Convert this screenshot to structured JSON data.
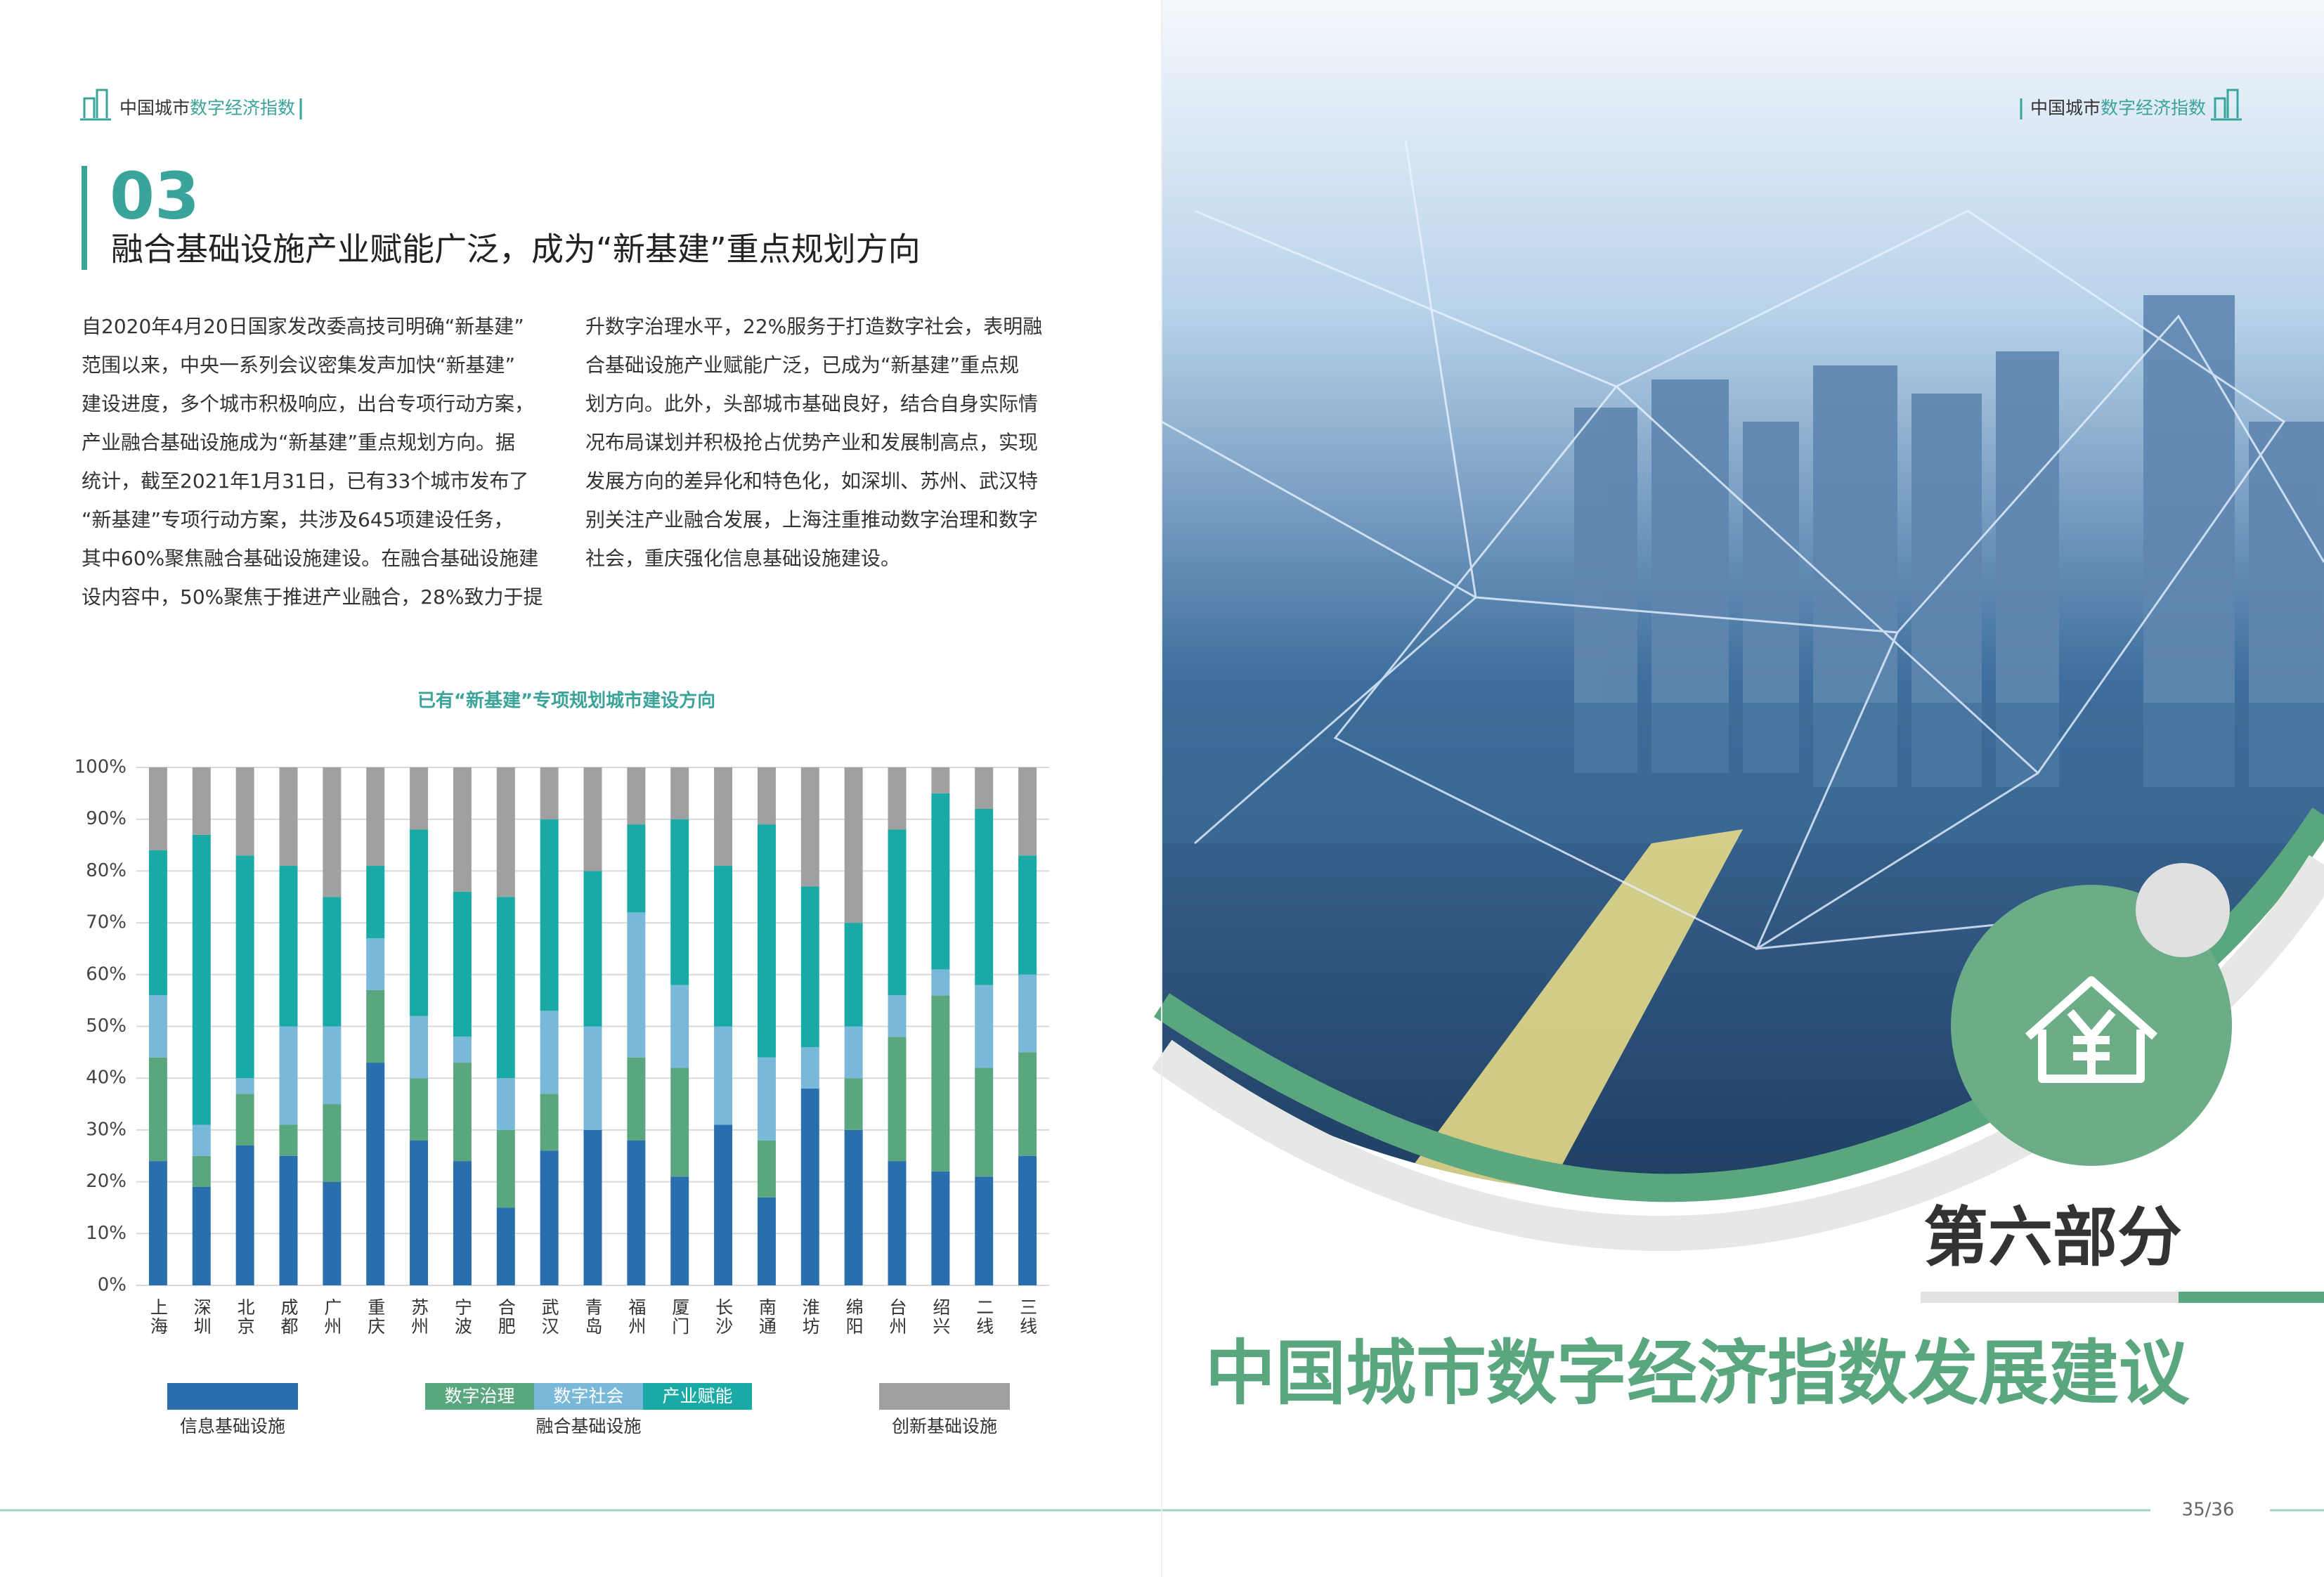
{
  "header_left": {
    "part1": "中国城市",
    "part2": "数字经济指数"
  },
  "header_right": {
    "part1": "中国城市",
    "part2": "数字经济指数"
  },
  "section": {
    "number": "03",
    "heading": "融合基础设施产业赋能广泛，成为“新基建”重点规划方向"
  },
  "body_columns": [
    [
      "自2020年4月20日国家发改委高技司明确“新基建”",
      "范围以来，中央一系列会议密集发声加快“新基建”",
      "建设进度，多个城市积极响应，出台专项行动方案，",
      "产业融合基础设施成为“新基建”重点规划方向。据",
      "统计，截至2021年1月31日，已有33个城市发布了",
      "“新基建”专项行动方案，共涉及645项建设任务，",
      "其中60%聚焦融合基础设施建设。在融合基础设施建",
      "设内容中，50%聚焦于推进产业融合，28%致力于提"
    ],
    [
      "升数字治理水平，22%服务于打造数字社会，表明融",
      "合基础设施产业赋能广泛，已成为“新基建”重点规",
      "划方向。此外，头部城市基础良好，结合自身实际情",
      "况布局谋划并积极抢占优势产业和发展制高点，实现",
      "发展方向的差异化和特色化，如深圳、苏州、武汉特",
      "别关注产业融合发展，上海注重推动数字治理和数字",
      "社会，重庆强化信息基础设施建设。"
    ]
  ],
  "chart_data": {
    "type": "stacked_bar",
    "title": "已有“新基建”专项规划城市建设方向",
    "categories": [
      "上海",
      "深圳",
      "北京",
      "成都",
      "广州",
      "重庆",
      "苏州",
      "宁波",
      "合肥",
      "武汉",
      "青岛",
      "福州",
      "厦门",
      "长沙",
      "南通",
      "淮坊",
      "绵阳",
      "台州",
      "绍兴",
      "二线",
      "三线"
    ],
    "series": [
      {
        "name": "信息基础设施",
        "color": "#2a6fad",
        "values": [
          24,
          19,
          27,
          25,
          20,
          43,
          28,
          24,
          15,
          26,
          30,
          28,
          21,
          31,
          17,
          38,
          30,
          24,
          22,
          21,
          25
        ]
      },
      {
        "name": "数字治理",
        "color": "#5aa77f",
        "values": [
          20,
          6,
          10,
          6,
          15,
          14,
          12,
          19,
          15,
          11,
          0,
          16,
          21,
          0,
          11,
          0,
          10,
          24,
          34,
          21,
          20
        ]
      },
      {
        "name": "数字社会",
        "color": "#7ab8d9",
        "values": [
          12,
          6,
          3,
          19,
          15,
          10,
          12,
          5,
          10,
          16,
          20,
          28,
          16,
          19,
          16,
          8,
          10,
          8,
          5,
          16,
          15
        ]
      },
      {
        "name": "产业赋能",
        "color": "#1aaaa6",
        "values": [
          28,
          56,
          43,
          31,
          25,
          14,
          36,
          28,
          35,
          37,
          30,
          17,
          32,
          31,
          45,
          31,
          20,
          32,
          34,
          34,
          23
        ]
      },
      {
        "name": "创新基础设施",
        "color": "#a0a0a0",
        "values": [
          16,
          13,
          17,
          19,
          25,
          19,
          12,
          24,
          25,
          10,
          20,
          11,
          10,
          19,
          11,
          23,
          30,
          12,
          5,
          8,
          17
        ]
      }
    ],
    "legend_group": "融合基础设施",
    "ylim": [
      0,
      100
    ],
    "yticks": [
      {
        "value": 0,
        "label": "0%"
      },
      {
        "value": 10,
        "label": "10%"
      },
      {
        "value": 20,
        "label": "20%"
      },
      {
        "value": 30,
        "label": "30%"
      },
      {
        "value": 40,
        "label": "40%"
      },
      {
        "value": 50,
        "label": "50%"
      },
      {
        "value": 60,
        "label": "60%"
      },
      {
        "value": 70,
        "label": "70%"
      },
      {
        "value": 80,
        "label": "80%"
      },
      {
        "value": 90,
        "label": "90%"
      },
      {
        "value": 100,
        "label": "100%"
      }
    ],
    "grid": true
  },
  "part": {
    "label": "第六部分",
    "title": "中国城市数字经济指数发展建议"
  },
  "page_number": "35/36"
}
